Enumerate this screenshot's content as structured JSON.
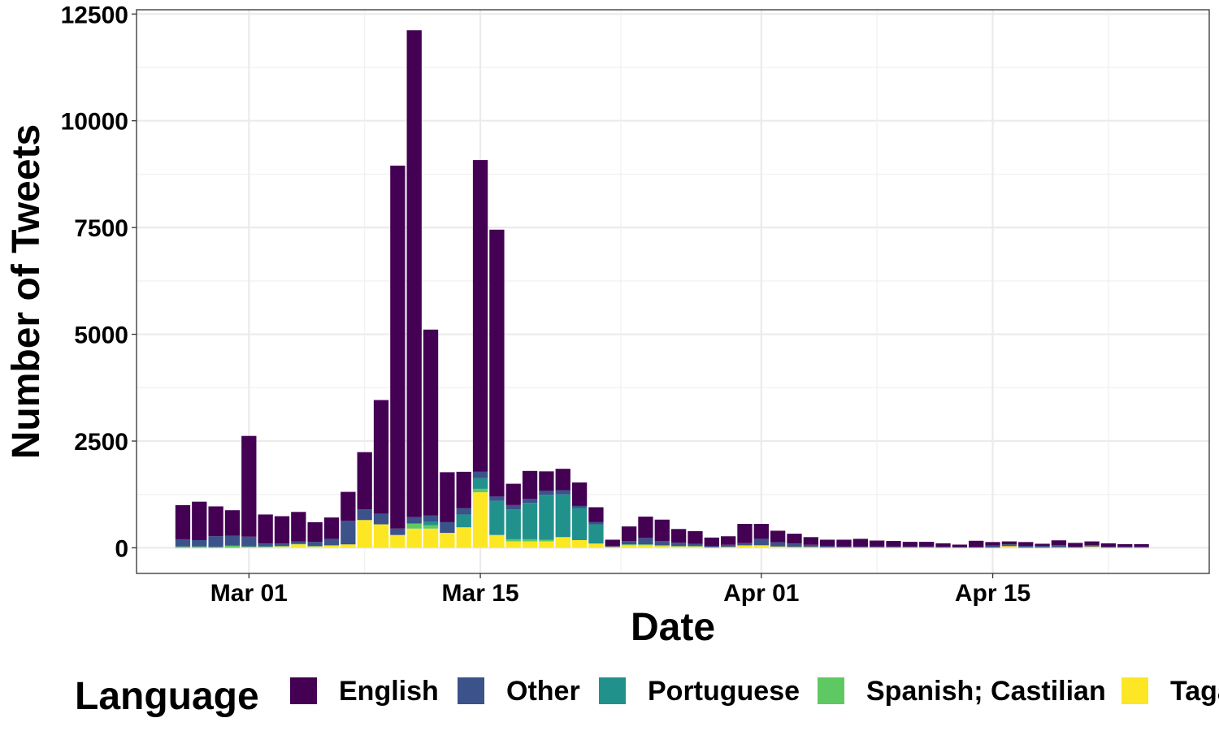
{
  "chart_data": {
    "type": "bar",
    "stacked": true,
    "xlabel": "Date",
    "ylabel": "Number of Tweets",
    "ylim": [
      -600,
      12600
    ],
    "x_tick_labels": [
      "Mar 01",
      "Mar 15",
      "Apr 01",
      "Apr 15"
    ],
    "y_tick_labels": [
      "0",
      "2500",
      "5000",
      "7500",
      "10000",
      "12500"
    ],
    "y_ticks": [
      0,
      2500,
      5000,
      7500,
      10000,
      12500
    ],
    "grid": true,
    "legend": {
      "title": "Language",
      "placement": "bottom"
    },
    "categories": [
      "Feb 26",
      "Feb 27",
      "Feb 28",
      "Feb 29",
      "Mar 01",
      "Mar 02",
      "Mar 03",
      "Mar 04",
      "Mar 05",
      "Mar 06",
      "Mar 07",
      "Mar 08",
      "Mar 09",
      "Mar 10",
      "Mar 11",
      "Mar 12",
      "Mar 13",
      "Mar 14",
      "Mar 15",
      "Mar 16",
      "Mar 17",
      "Mar 18",
      "Mar 19",
      "Mar 20",
      "Mar 21",
      "Mar 22",
      "Mar 23",
      "Mar 24",
      "Mar 25",
      "Mar 26",
      "Mar 27",
      "Mar 28",
      "Mar 29",
      "Mar 30",
      "Mar 31",
      "Apr 01",
      "Apr 02",
      "Apr 03",
      "Apr 04",
      "Apr 05",
      "Apr 06",
      "Apr 07",
      "Apr 08",
      "Apr 09",
      "Apr 10",
      "Apr 11",
      "Apr 12",
      "Apr 13",
      "Apr 14",
      "Apr 15",
      "Apr 16",
      "Apr 17",
      "Apr 18",
      "Apr 19",
      "Apr 20",
      "Apr 21",
      "Apr 22",
      "Apr 23",
      "Apr 24"
    ],
    "series": [
      {
        "name": "Tagalog",
        "color": "#FDE725",
        "values": [
          0,
          0,
          0,
          0,
          10,
          10,
          30,
          80,
          30,
          50,
          80,
          650,
          550,
          300,
          450,
          450,
          350,
          480,
          1300,
          300,
          150,
          150,
          150,
          250,
          180,
          100,
          20,
          60,
          60,
          40,
          30,
          30,
          10,
          20,
          50,
          60,
          30,
          20,
          20,
          10,
          10,
          10,
          10,
          10,
          10,
          10,
          5,
          5,
          5,
          5,
          40,
          5,
          5,
          5,
          5,
          30,
          5,
          5,
          5
        ]
      },
      {
        "name": "Spanish; Castilian",
        "color": "#5EC962",
        "values": [
          30,
          30,
          20,
          50,
          20,
          20,
          10,
          10,
          10,
          10,
          0,
          0,
          0,
          0,
          120,
          80,
          0,
          0,
          80,
          0,
          50,
          50,
          40,
          0,
          0,
          0,
          0,
          20,
          20,
          20,
          10,
          10,
          0,
          0,
          10,
          0,
          0,
          0,
          0,
          0,
          0,
          0,
          0,
          0,
          0,
          0,
          0,
          0,
          0,
          0,
          0,
          0,
          0,
          10,
          0,
          0,
          0,
          0,
          0
        ]
      },
      {
        "name": "Portuguese",
        "color": "#21918C",
        "values": [
          0,
          0,
          0,
          0,
          0,
          0,
          0,
          0,
          0,
          0,
          0,
          0,
          0,
          0,
          0,
          80,
          0,
          300,
          250,
          800,
          700,
          850,
          1050,
          1000,
          750,
          450,
          0,
          0,
          0,
          0,
          0,
          0,
          0,
          0,
          0,
          0,
          0,
          0,
          0,
          0,
          0,
          0,
          0,
          0,
          0,
          0,
          0,
          0,
          0,
          0,
          0,
          0,
          0,
          0,
          0,
          0,
          0,
          0,
          0
        ]
      },
      {
        "name": "Other",
        "color": "#3B528B",
        "values": [
          170,
          150,
          250,
          230,
          230,
          70,
          60,
          60,
          100,
          150,
          550,
          250,
          250,
          150,
          150,
          150,
          250,
          150,
          150,
          100,
          100,
          100,
          100,
          100,
          50,
          50,
          20,
          80,
          150,
          100,
          80,
          50,
          30,
          50,
          50,
          150,
          100,
          80,
          50,
          30,
          20,
          20,
          20,
          20,
          20,
          20,
          20,
          10,
          10,
          50,
          40,
          40,
          40,
          50,
          20,
          30,
          20,
          20,
          20
        ]
      },
      {
        "name": "English",
        "color": "#440154",
        "values": [
          800,
          900,
          700,
          600,
          2360,
          680,
          640,
          690,
          460,
          500,
          680,
          1340,
          2660,
          8500,
          11400,
          4350,
          1170,
          850,
          7300,
          6250,
          500,
          650,
          450,
          500,
          550,
          350,
          150,
          340,
          500,
          500,
          320,
          300,
          200,
          200,
          450,
          350,
          270,
          230,
          180,
          150,
          160,
          180,
          140,
          130,
          110,
          110,
          80,
          60,
          150,
          80,
          70,
          90,
          50,
          110,
          90,
          90,
          80,
          60,
          60
        ]
      }
    ]
  }
}
